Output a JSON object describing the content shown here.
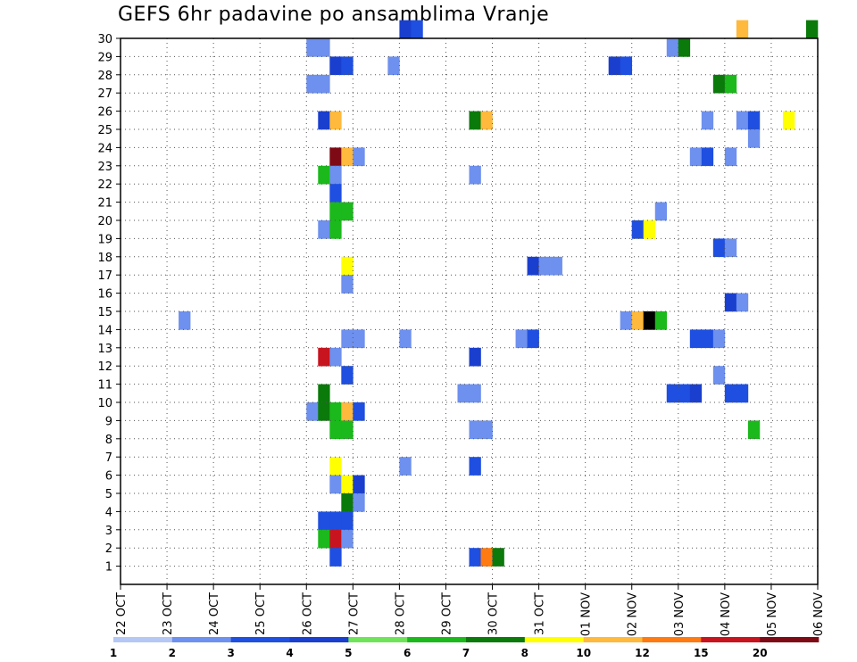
{
  "chart_data": {
    "type": "heatmap",
    "title": "GEFS 6hr padavine po ansamblima Vranje",
    "y_ticks": [
      "1",
      "2",
      "3",
      "4",
      "5",
      "6",
      "7",
      "8",
      "9",
      "10",
      "11",
      "12",
      "13",
      "14",
      "15",
      "16",
      "17",
      "18",
      "19",
      "20",
      "21",
      "22",
      "23",
      "24",
      "25",
      "26",
      "27",
      "28",
      "29",
      "30"
    ],
    "x_ticks": [
      "22 OCT",
      "23 OCT",
      "24 OCT",
      "25 OCT",
      "26 OCT",
      "27 OCT",
      "28 OCT",
      "29 OCT",
      "30 OCT",
      "31 OCT",
      "01 NOV",
      "02 NOV",
      "03 NOV",
      "04 NOV",
      "05 NOV",
      "06 NOV"
    ],
    "x_range_steps": [
      0,
      60
    ],
    "y_range_rows": [
      0,
      30
    ],
    "x_unit": "6-hour step from 22 OCT 00Z (4 per day)",
    "y_unit": "ensemble member (0 = control)",
    "colorbar": {
      "labels": [
        "1",
        "2",
        "3",
        "4",
        "5",
        "6",
        "7",
        "8",
        "10",
        "12",
        "15",
        "20"
      ],
      "colors": [
        "#b4c7f5",
        "#6e90ee",
        "#1f4fe0",
        "#1a3fce",
        "#6fe35a",
        "#1bb91b",
        "#0a7a0a",
        "#ffff00",
        "#ffb93c",
        "#ff7a10",
        "#c8141e",
        "#7d0a14"
      ]
    },
    "cells": [
      [
        16,
        29,
        1
      ],
      [
        17,
        29,
        1
      ],
      [
        24,
        30,
        3
      ],
      [
        25,
        30,
        2
      ],
      [
        53,
        30,
        8
      ],
      [
        59,
        30,
        6
      ],
      [
        18,
        28,
        3
      ],
      [
        19,
        28,
        2
      ],
      [
        23,
        28,
        1
      ],
      [
        42,
        28,
        3
      ],
      [
        43,
        28,
        2
      ],
      [
        47,
        29,
        1
      ],
      [
        48,
        29,
        6
      ],
      [
        16,
        27,
        1
      ],
      [
        17,
        27,
        1
      ],
      [
        51,
        27,
        6
      ],
      [
        52,
        27,
        5
      ],
      [
        17,
        25,
        3
      ],
      [
        18,
        25,
        8
      ],
      [
        30,
        25,
        6
      ],
      [
        31,
        25,
        8
      ],
      [
        50,
        25,
        1
      ],
      [
        53,
        25,
        1
      ],
      [
        54,
        25,
        2
      ],
      [
        57,
        25,
        7
      ],
      [
        54,
        24,
        1
      ],
      [
        18,
        23,
        11
      ],
      [
        19,
        23,
        8
      ],
      [
        20,
        23,
        1
      ],
      [
        49,
        23,
        1
      ],
      [
        50,
        23,
        2
      ],
      [
        52,
        23,
        1
      ],
      [
        17,
        22,
        5
      ],
      [
        18,
        22,
        1
      ],
      [
        30,
        22,
        1
      ],
      [
        18,
        21,
        2
      ],
      [
        18,
        20,
        5
      ],
      [
        19,
        20,
        5
      ],
      [
        46,
        20,
        1
      ],
      [
        17,
        19,
        1
      ],
      [
        18,
        19,
        5
      ],
      [
        44,
        19,
        2
      ],
      [
        45,
        19,
        7
      ],
      [
        51,
        18,
        2
      ],
      [
        52,
        18,
        1
      ],
      [
        19,
        17,
        7
      ],
      [
        35,
        17,
        3
      ],
      [
        36,
        17,
        1
      ],
      [
        37,
        17,
        1
      ],
      [
        19,
        16,
        1
      ],
      [
        52,
        15,
        3
      ],
      [
        53,
        15,
        1
      ],
      [
        5,
        14,
        1
      ],
      [
        43,
        14,
        1
      ],
      [
        44,
        14,
        8
      ],
      [
        45,
        14,
        12
      ],
      [
        46,
        14,
        5
      ],
      [
        19,
        13,
        1
      ],
      [
        20,
        13,
        1
      ],
      [
        24,
        13,
        1
      ],
      [
        34,
        13,
        1
      ],
      [
        35,
        13,
        2
      ],
      [
        49,
        13,
        2
      ],
      [
        50,
        13,
        2
      ],
      [
        51,
        13,
        1
      ],
      [
        17,
        12,
        10
      ],
      [
        18,
        12,
        1
      ],
      [
        30,
        12,
        3
      ],
      [
        19,
        11,
        2
      ],
      [
        51,
        11,
        1
      ],
      [
        17,
        10,
        6
      ],
      [
        29,
        10,
        1
      ],
      [
        30,
        10,
        1
      ],
      [
        47,
        10,
        2
      ],
      [
        48,
        10,
        2
      ],
      [
        49,
        10,
        3
      ],
      [
        52,
        10,
        2
      ],
      [
        53,
        10,
        2
      ],
      [
        16,
        9,
        1
      ],
      [
        17,
        9,
        6
      ],
      [
        18,
        9,
        5
      ],
      [
        19,
        9,
        8
      ],
      [
        20,
        9,
        2
      ],
      [
        18,
        8,
        5
      ],
      [
        19,
        8,
        5
      ],
      [
        30,
        8,
        1
      ],
      [
        31,
        8,
        1
      ],
      [
        54,
        8,
        5
      ],
      [
        18,
        6,
        7
      ],
      [
        24,
        6,
        1
      ],
      [
        30,
        6,
        2
      ],
      [
        18,
        5,
        1
      ],
      [
        19,
        5,
        7
      ],
      [
        20,
        5,
        3
      ],
      [
        19,
        4,
        6
      ],
      [
        20,
        4,
        1
      ],
      [
        17,
        3,
        2
      ],
      [
        18,
        3,
        2
      ],
      [
        19,
        3,
        2
      ],
      [
        17,
        2,
        5
      ],
      [
        18,
        2,
        10
      ],
      [
        19,
        2,
        1
      ],
      [
        18,
        1,
        2
      ],
      [
        30,
        1,
        2
      ],
      [
        31,
        1,
        9
      ],
      [
        32,
        1,
        6
      ]
    ]
  }
}
